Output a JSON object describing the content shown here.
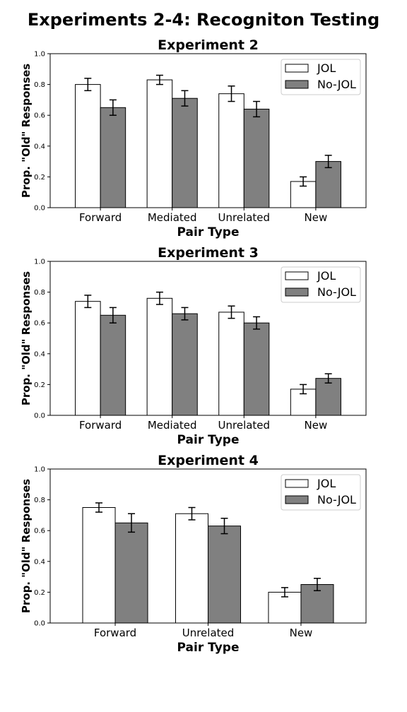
{
  "figure_title": "Experiments 2-4: Recogniton Testing",
  "colors": {
    "jol": "#ffffff",
    "nojol": "#808080",
    "edge": "#000000"
  },
  "chart_data": [
    {
      "type": "bar",
      "title": "Experiment 2",
      "xlabel": "Pair Type",
      "ylabel": "Prop. \"Old\" Responses",
      "ylim": [
        0,
        1.0
      ],
      "yticks": [
        "0.0",
        "0.2",
        "0.4",
        "0.6",
        "0.8",
        "1.0"
      ],
      "categories": [
        "Forward",
        "Mediated",
        "Unrelated",
        "New"
      ],
      "legend": "top-right",
      "grid": false,
      "series": [
        {
          "name": "JOL",
          "values": [
            0.8,
            0.83,
            0.74,
            0.17
          ],
          "errors": [
            0.04,
            0.03,
            0.05,
            0.03
          ]
        },
        {
          "name": "No-JOL",
          "values": [
            0.65,
            0.71,
            0.64,
            0.3
          ],
          "errors": [
            0.05,
            0.05,
            0.05,
            0.04
          ]
        }
      ]
    },
    {
      "type": "bar",
      "title": "Experiment 3",
      "xlabel": "Pair Type",
      "ylabel": "Prop. \"Old\" Responses",
      "ylim": [
        0,
        1.0
      ],
      "yticks": [
        "0.0",
        "0.2",
        "0.4",
        "0.6",
        "0.8",
        "1.0"
      ],
      "categories": [
        "Forward",
        "Mediated",
        "Unrelated",
        "New"
      ],
      "legend": "top-right",
      "grid": false,
      "series": [
        {
          "name": "JOL",
          "values": [
            0.74,
            0.76,
            0.67,
            0.17
          ],
          "errors": [
            0.04,
            0.04,
            0.04,
            0.03
          ]
        },
        {
          "name": "No-JOL",
          "values": [
            0.65,
            0.66,
            0.6,
            0.24
          ],
          "errors": [
            0.05,
            0.04,
            0.04,
            0.03
          ]
        }
      ]
    },
    {
      "type": "bar",
      "title": "Experiment 4",
      "xlabel": "Pair Type",
      "ylabel": "Prop. \"Old\" Responses",
      "ylim": [
        0,
        1.0
      ],
      "yticks": [
        "0.0",
        "0.2",
        "0.4",
        "0.6",
        "0.8",
        "1.0"
      ],
      "categories": [
        "Forward",
        "Unrelated",
        "New"
      ],
      "legend": "top-right",
      "grid": false,
      "series": [
        {
          "name": "JOL",
          "values": [
            0.75,
            0.71,
            0.2
          ],
          "errors": [
            0.03,
            0.04,
            0.03
          ]
        },
        {
          "name": "No-JOL",
          "values": [
            0.65,
            0.63,
            0.25
          ],
          "errors": [
            0.06,
            0.05,
            0.04
          ]
        }
      ]
    }
  ]
}
